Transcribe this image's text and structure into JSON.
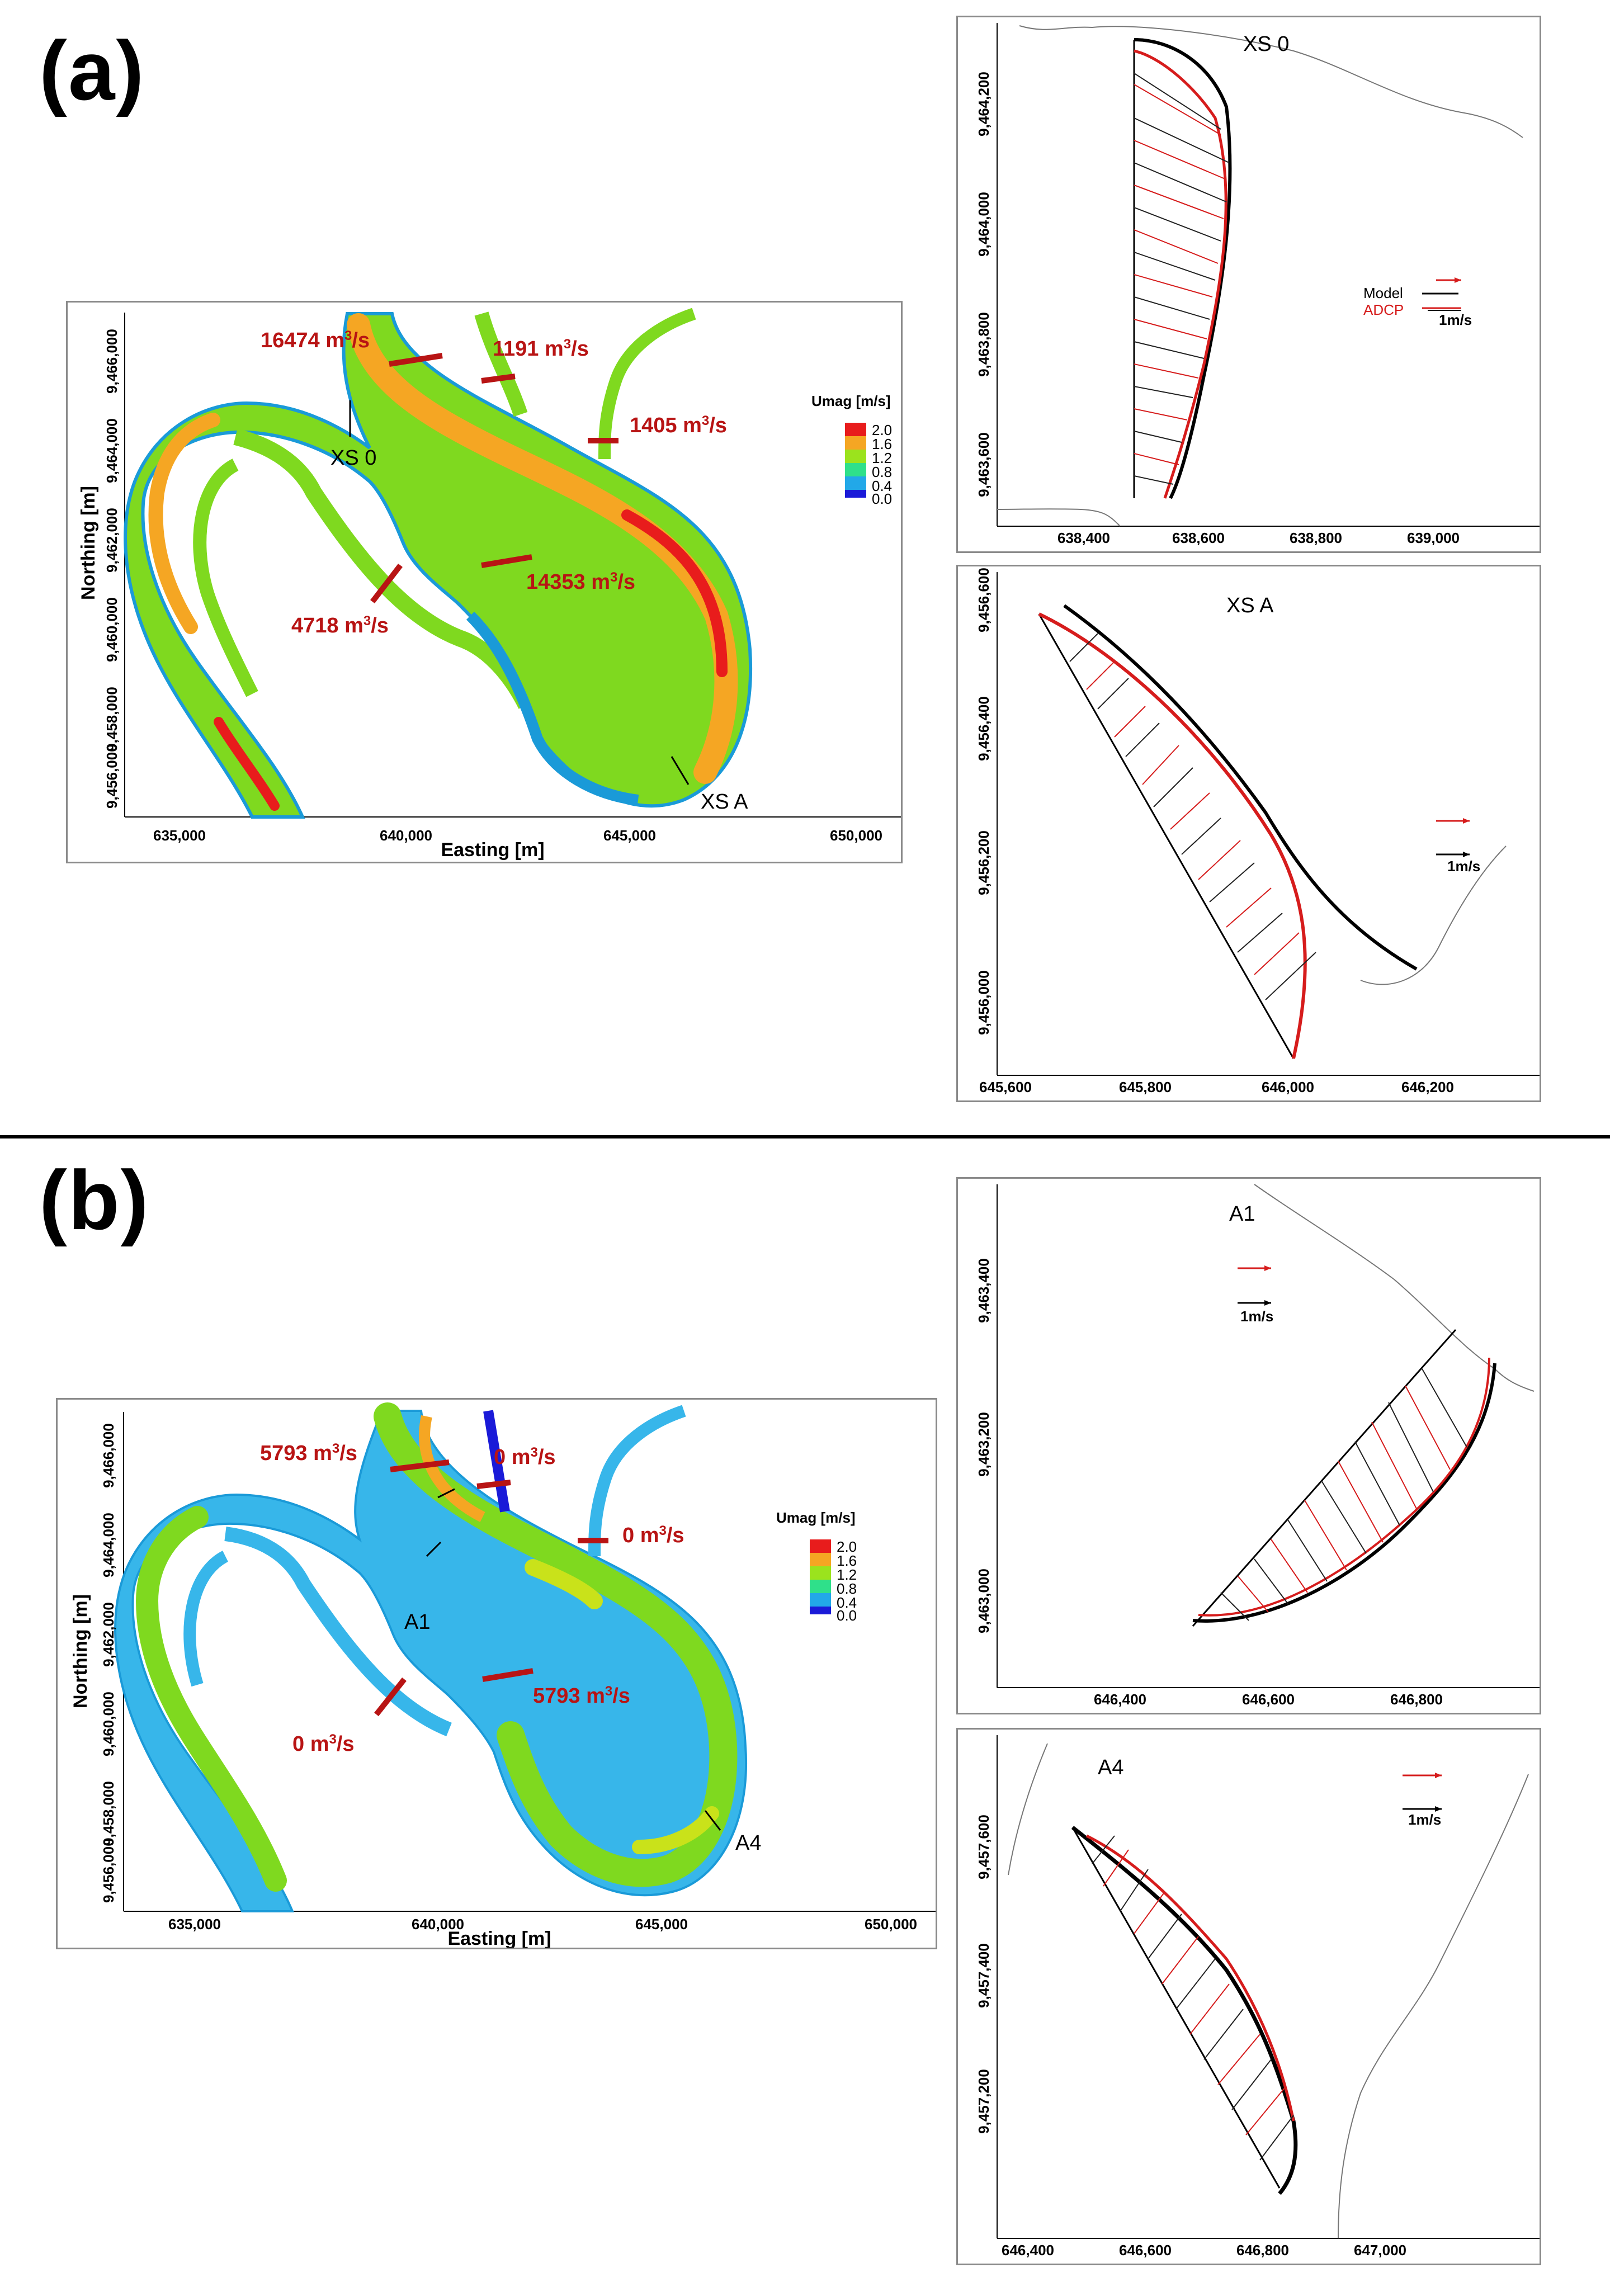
{
  "panel_a": {
    "letter": "(a)",
    "map": {
      "x_axis_title": "Easting [m]",
      "y_axis_title": "Northing [m]",
      "x_ticks": [
        "635,000",
        "640,000",
        "645,000",
        "650,000"
      ],
      "y_ticks": [
        "9,456,000",
        "9,458,000",
        "9,460,000",
        "9,462,000",
        "9,464,000",
        "9,466,000"
      ],
      "legend_title": "Umag [m/s]",
      "legend_values": [
        "2.0",
        "1.6",
        "1.2",
        "0.8",
        "0.4",
        "0.0"
      ],
      "legend_colors": [
        "#e81c1c",
        "#f5a623",
        "#9be31d",
        "#2fe08a",
        "#22a8e8",
        "#1a1ad8"
      ],
      "section_labels": [
        "XS 0",
        "XS A"
      ],
      "flows": [
        "16474 m",
        "1191 m",
        "1405 m",
        "14353 m",
        "4718 m"
      ],
      "flow_unit_tail": "/s",
      "flow_unit_sup": "3"
    },
    "xs0": {
      "title": "XS 0",
      "x_ticks": [
        "638,400",
        "638,600",
        "638,800",
        "639,000"
      ],
      "y_ticks": [
        "9,463,600",
        "9,463,800",
        "9,464,000",
        "9,464,200"
      ],
      "legend_model": "Model",
      "legend_adcp": "ADCP",
      "scale_label": "1m/s"
    },
    "xsA": {
      "title": "XS A",
      "x_ticks": [
        "645,600",
        "645,800",
        "646,000",
        "646,200"
      ],
      "y_ticks": [
        "9,456,000",
        "9,456,200",
        "9,456,400",
        "9,456,600"
      ],
      "scale_label": "1m/s"
    }
  },
  "panel_b": {
    "letter": "(b)",
    "map": {
      "x_axis_title": "Easting [m]",
      "y_axis_title": "Northing [m]",
      "x_ticks": [
        "635,000",
        "640,000",
        "645,000",
        "650,000"
      ],
      "y_ticks": [
        "9,456,000",
        "9,458,000",
        "9,460,000",
        "9,462,000",
        "9,464,000",
        "9,466,000"
      ],
      "legend_title": "Umag [m/s]",
      "legend_values": [
        "2.0",
        "1.6",
        "1.2",
        "0.8",
        "0.4",
        "0.0"
      ],
      "section_labels": [
        "A1",
        "A4"
      ],
      "flows": [
        "5793 m",
        "0 m",
        "0 m",
        "5793 m",
        "0 m"
      ],
      "flow_unit_tail": "/s",
      "flow_unit_sup": "3"
    },
    "a1": {
      "title": "A1",
      "x_ticks": [
        "646,400",
        "646,600",
        "646,800"
      ],
      "y_ticks": [
        "9,463,000",
        "9,463,200",
        "9,463,400"
      ],
      "scale_label": "1m/s"
    },
    "a4": {
      "title": "A4",
      "x_ticks": [
        "646,400",
        "646,600",
        "646,800",
        "647,000"
      ],
      "y_ticks": [
        "9,457,200",
        "9,457,400",
        "9,457,600"
      ],
      "scale_label": "1m/s"
    }
  }
}
